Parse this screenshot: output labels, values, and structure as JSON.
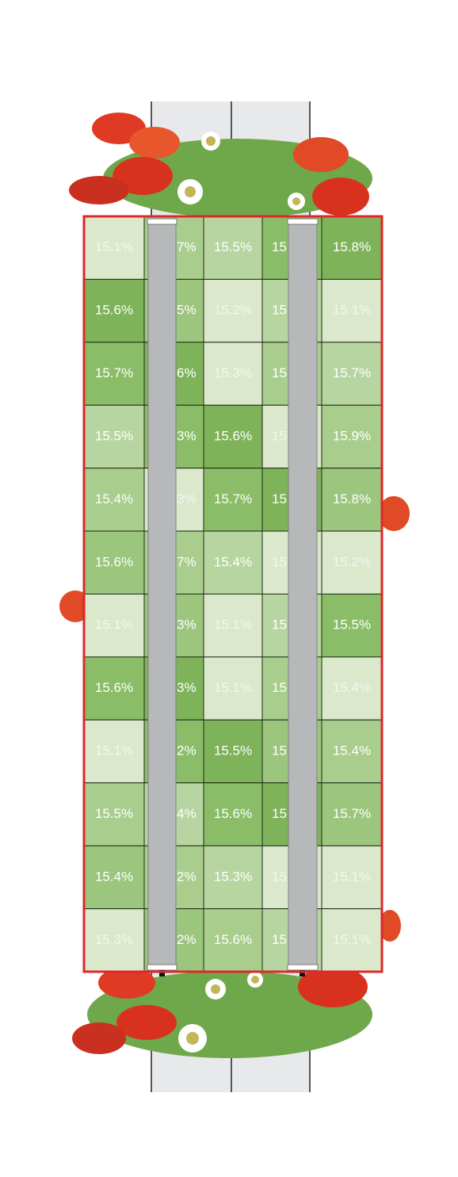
{
  "grid": {
    "rows": [
      [
        "15.1%",
        "7%",
        "15.5%",
        "15",
        "15.8%"
      ],
      [
        "15.6%",
        "5%",
        "15.2%",
        "15",
        "15.1%"
      ],
      [
        "15.7%",
        "6%",
        "15.3%",
        "15",
        "15.7%"
      ],
      [
        "15.5%",
        "3%",
        "15.6%",
        "15",
        "15.9%"
      ],
      [
        "15.4%",
        "3%",
        "15.7%",
        "15",
        "15.8%"
      ],
      [
        "15.6%",
        "7%",
        "15.4%",
        "15",
        "15.2%"
      ],
      [
        "15.1%",
        "3%",
        "15.1%",
        "15",
        "15.5%"
      ],
      [
        "15.6%",
        "3%",
        "15.1%",
        "15",
        "15.4%"
      ],
      [
        "15.1%",
        "2%",
        "15.5%",
        "15",
        "15.4%"
      ],
      [
        "15.5%",
        "4%",
        "15.6%",
        "15",
        "15.7%"
      ],
      [
        "15.4%",
        "2%",
        "15.3%",
        "15",
        "15.1%"
      ],
      [
        "15.3%",
        "2%",
        "15.6%",
        "15",
        "15.1%"
      ]
    ]
  }
}
